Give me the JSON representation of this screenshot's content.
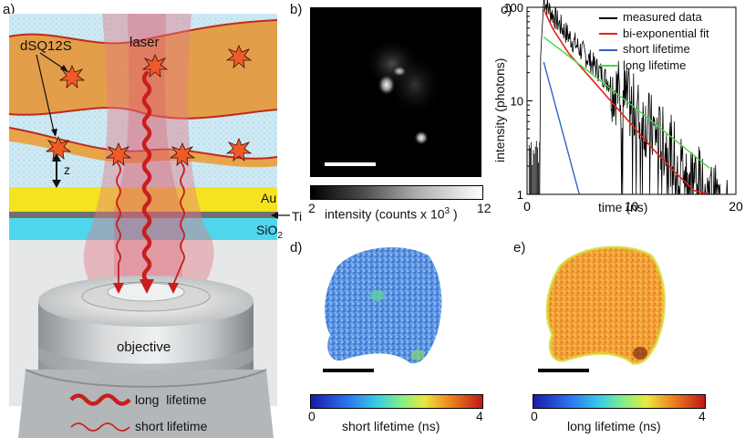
{
  "panels": {
    "a": "a)",
    "b": "b)",
    "c": "c)",
    "d": "d)",
    "e": "e)"
  },
  "schematic": {
    "laser_label": "laser",
    "dye_label": "dSQ12S",
    "z_label": "z",
    "au_label": "Au",
    "ti_label": "Ti",
    "sio2_label": "SiO",
    "sio2_sub": "2",
    "objective_label": "objective",
    "legend_long": "long  lifetime",
    "legend_short": "short lifetime"
  },
  "intensity_colorbar": {
    "min": "2",
    "max": "12",
    "title_main": "intensity (counts x 10",
    "title_exp": "3",
    "title_end": " )"
  },
  "short_colorbar": {
    "min": "0",
    "max": "4",
    "title": "short lifetime (ns)"
  },
  "long_colorbar": {
    "min": "0",
    "max": "4",
    "title": "long lifetime (ns)"
  },
  "chart_data": {
    "type": "line",
    "xlabel": "time (ns)",
    "ylabel": "intensity (photons)",
    "xlim": [
      0,
      20
    ],
    "ylim": [
      1,
      100
    ],
    "yscale": "log",
    "xticks": [
      "0",
      "10",
      "20"
    ],
    "yticks": [
      "1",
      "10",
      "100"
    ],
    "legend_position": "top-right",
    "series": [
      {
        "name": "measured data",
        "color": "#000000",
        "x": [
          1.6,
          2.5,
          4,
          6,
          8,
          10,
          12,
          14,
          16,
          17.5
        ],
        "y": [
          100,
          60,
          32,
          18,
          10,
          5.5,
          3,
          1.8,
          1.2,
          1
        ]
      },
      {
        "name": "bi-exponential fit",
        "color": "#e8201c",
        "x": [
          1.6,
          2.5,
          4,
          6,
          8,
          10,
          12,
          14,
          16,
          17.5
        ],
        "y": [
          95,
          58,
          32,
          18,
          10,
          5.6,
          3.1,
          1.8,
          1.1,
          1
        ]
      },
      {
        "name": "short lifetime",
        "color": "#2f62c8",
        "x": [
          1.6,
          5.0
        ],
        "y": [
          26,
          1
        ]
      },
      {
        "name": "long lifetime",
        "color": "#46d846",
        "x": [
          1.6,
          4,
          8,
          12,
          16,
          17.5
        ],
        "y": [
          48,
          30,
          13.5,
          6,
          2.6,
          1.9
        ]
      }
    ]
  }
}
